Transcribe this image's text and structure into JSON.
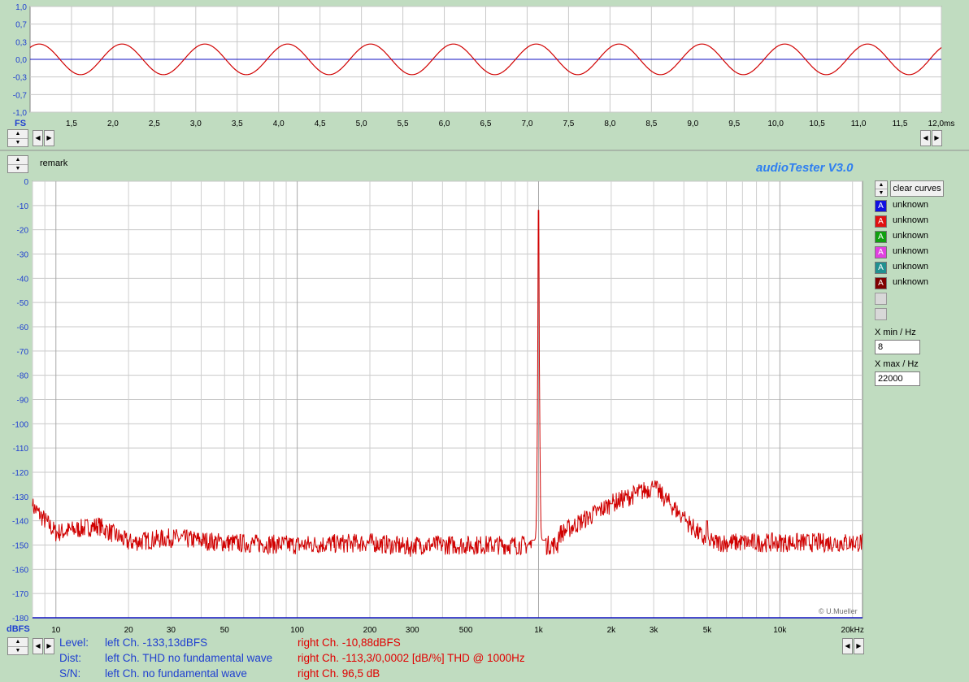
{
  "colors": {
    "background": "#c0dcc0",
    "plot_bg": "#ffffff",
    "grid": "#c0c0c0",
    "curve_red": "#d00000",
    "baseline_blue": "#1010c0",
    "label_blue": "#1f3fd0",
    "brand_blue": "#2f7ff0",
    "status_red": "#e00000"
  },
  "scope": {
    "unit_label": "FS",
    "y_ticks": [
      "1,0",
      "0,7",
      "0,3",
      "0,0",
      "-0,3",
      "-0,7",
      "-1,0"
    ],
    "x_ticks": [
      "1,5",
      "2,0",
      "2,5",
      "3,0",
      "3,5",
      "4,0",
      "4,5",
      "5,0",
      "5,5",
      "6,0",
      "6,5",
      "7,0",
      "7,5",
      "8,0",
      "8,5",
      "9,0",
      "9,5",
      "10,0",
      "10,5",
      "11,0",
      "11,5",
      "12,0ms"
    ]
  },
  "header": {
    "remark": "remark",
    "app_title": "audioTester  V3.0"
  },
  "spectrum": {
    "y_unit": "dBFS",
    "y_ticks": [
      "0",
      "-10",
      "-20",
      "-30",
      "-40",
      "-50",
      "-60",
      "-70",
      "-80",
      "-90",
      "-100",
      "-110",
      "-120",
      "-130",
      "-140",
      "-150",
      "-160",
      "-170",
      "-180"
    ],
    "x_ticks": [
      "10",
      "20",
      "30",
      "50",
      "100",
      "200",
      "300",
      "500",
      "1k",
      "2k",
      "3k",
      "5k",
      "10k",
      "20kHz"
    ],
    "watermark": "© U.Mueller"
  },
  "chart_data": [
    {
      "type": "line",
      "xlabel": "",
      "ylabel": "FS",
      "xlim": [
        1.0,
        12.0
      ],
      "ylim": [
        -1.0,
        1.0
      ],
      "series": [
        {
          "color": "#d00000",
          "amplitude": 0.29,
          "frequency_hz": 1000
        }
      ]
    },
    {
      "type": "line",
      "xscale": "log",
      "xlim": [
        8,
        22000
      ],
      "ylim": [
        -180,
        0
      ],
      "xlabel": "",
      "ylabel": "dBFS",
      "series": [
        {
          "color": "#d00000",
          "x": [
            8,
            10,
            15,
            20,
            30,
            50,
            100,
            200,
            300,
            500,
            800,
            1000,
            1200,
            2000,
            3000,
            5000,
            10000,
            20000,
            22000
          ],
          "y": [
            -134,
            -145,
            -142,
            -149,
            -147,
            -149,
            -150,
            -149,
            -151,
            -150,
            -148,
            -12,
            -146,
            -133,
            -126,
            -149,
            -149,
            -149,
            -149
          ]
        }
      ]
    }
  ],
  "legend": {
    "clear_label": "clear curves",
    "channels": [
      {
        "label": "unknown",
        "letter": "A",
        "color": "#1010e0"
      },
      {
        "label": "unknown",
        "letter": "A",
        "color": "#e01010"
      },
      {
        "label": "unknown",
        "letter": "A",
        "color": "#10a010"
      },
      {
        "label": "unknown",
        "letter": "A",
        "color": "#e040e0"
      },
      {
        "label": "unknown",
        "letter": "A",
        "color": "#209090"
      },
      {
        "label": "unknown",
        "letter": "A",
        "color": "#800000"
      }
    ]
  },
  "range": {
    "xmin_label": "X min / Hz",
    "xmin_value": "8",
    "xmax_label": "X max / Hz",
    "xmax_value": "22000"
  },
  "status": {
    "level_label": "Level:",
    "level_left": "left Ch. -133,13dBFS",
    "level_right": "right Ch. -10,88dBFS",
    "dist_label": "Dist:",
    "dist_left": "left Ch. THD no fundamental wave",
    "dist_right": "right Ch. -113,3/0,0002 [dB/%] THD @ 1000Hz",
    "sn_label": "S/N:",
    "sn_left": "left Ch.  no fundamental wave",
    "sn_right": "right Ch. 96,5 dB"
  }
}
